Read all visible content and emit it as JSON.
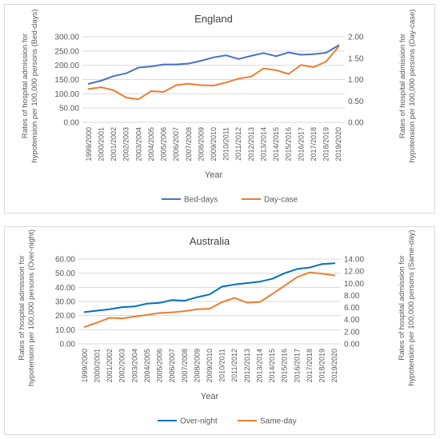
{
  "chart_data": [
    {
      "type": "line",
      "title": "England",
      "xlabel": "Year",
      "ylabel": "Rates of hospital admission for hypotension per 100,000 persons (Bed-days)",
      "y2label": "Rates of hospital admission for hypotension per 100,000 persons (Day-case)",
      "categories": [
        "1999/2000",
        "2000/2001",
        "2001/2002",
        "2002/2003",
        "2003/2004",
        "2004/2005",
        "2005/2006",
        "2006/2007",
        "2007/2008",
        "2008/2009",
        "2009/2010",
        "2010/2011",
        "2011/2012",
        "2012/2013",
        "2013/2014",
        "2014/2015",
        "2015/2016",
        "2016/2017",
        "2017/2018",
        "2018/2019",
        "2019/2020"
      ],
      "ylim": [
        0,
        300
      ],
      "yticks": [
        "0.00",
        "50.00",
        "100.00",
        "150.00",
        "200.00",
        "250.00",
        "300.00"
      ],
      "y2lim": [
        0,
        2
      ],
      "y2ticks": [
        "0.00",
        "0.50",
        "1.00",
        "1.50",
        "2.00"
      ],
      "series": [
        {
          "name": "Bed-days",
          "axis": "left",
          "color": "#4472c4",
          "values": [
            135,
            146,
            162,
            172,
            192,
            196,
            203,
            203,
            206,
            216,
            228,
            235,
            222,
            233,
            243,
            232,
            245,
            237,
            239,
            244,
            270
          ]
        },
        {
          "name": "Day-case",
          "axis": "right",
          "color": "#ed7d31",
          "values": [
            0.78,
            0.82,
            0.75,
            0.58,
            0.54,
            0.73,
            0.71,
            0.87,
            0.9,
            0.87,
            0.86,
            0.93,
            1.02,
            1.07,
            1.26,
            1.22,
            1.13,
            1.34,
            1.29,
            1.42,
            1.77
          ]
        }
      ],
      "legend": "bottom",
      "grid": true
    },
    {
      "type": "line",
      "title": "Australia",
      "xlabel": "Year",
      "ylabel": "Rates of hospital admission for hypotension per 100,000 persons (Over-night)",
      "y2label": "Rates of hospital admission for hypotension per 100,000 persons (Same-day)",
      "categories": [
        "1999/2000",
        "2000/2001",
        "2001/2002",
        "2002/2003",
        "2003/2004",
        "2004/2005",
        "2005/2006",
        "2006/2007",
        "2007/2008",
        "2008/2009",
        "2009/2010",
        "2010/2011",
        "2011/2012",
        "2012/2013",
        "2013/2014",
        "2014/2015",
        "2015/2016",
        "2016/2017",
        "2017/2018",
        "2018/2019",
        "2019/2020"
      ],
      "ylim": [
        0,
        60
      ],
      "yticks": [
        "0.00",
        "10.00",
        "20.00",
        "30.00",
        "40.00",
        "50.00",
        "60.00"
      ],
      "y2lim": [
        0,
        14
      ],
      "y2ticks": [
        "0.00",
        "2.00",
        "4.00",
        "6.00",
        "8.00",
        "10.00",
        "12.00",
        "14.00"
      ],
      "series": [
        {
          "name": "Over-night",
          "axis": "left",
          "color": "#0070c0",
          "values": [
            22.5,
            23.5,
            24.5,
            26,
            26.5,
            28.5,
            29,
            31,
            30.5,
            33,
            35,
            40.5,
            42,
            43,
            44,
            46,
            50,
            53,
            54,
            56.5,
            57
          ]
        },
        {
          "name": "Same-day",
          "axis": "right",
          "color": "#ed7d31",
          "values": [
            2.8,
            3.5,
            4.3,
            4.2,
            4.5,
            4.8,
            5.1,
            5.2,
            5.4,
            5.7,
            5.8,
            6.9,
            7.6,
            6.8,
            6.9,
            8.2,
            9.6,
            11.0,
            11.8,
            11.6,
            11.3
          ]
        }
      ],
      "legend": "bottom",
      "grid": true
    }
  ]
}
